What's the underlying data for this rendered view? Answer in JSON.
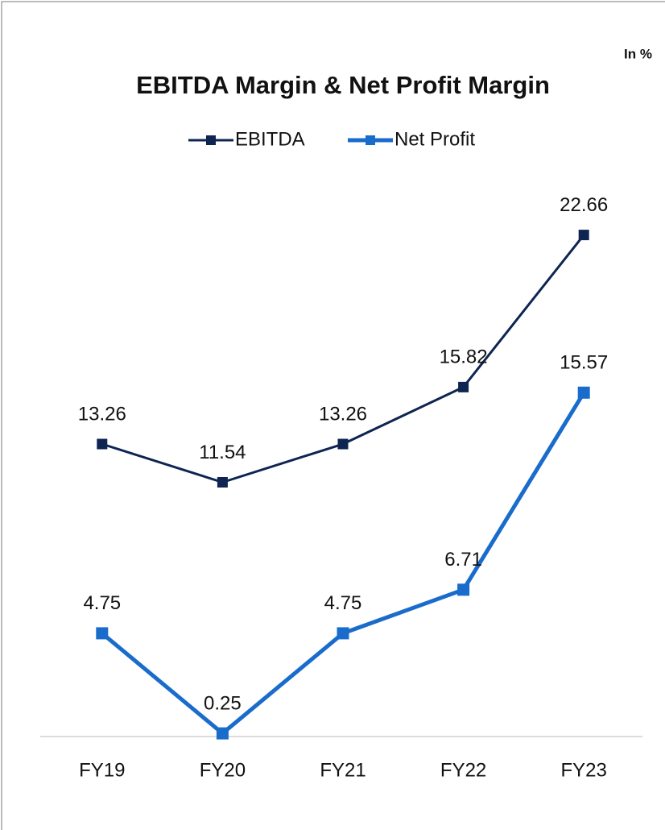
{
  "chart_data": {
    "type": "line",
    "title": "EBITDA Margin & Net Profit Margin",
    "annotation": "In %",
    "categories": [
      "FY19",
      "FY20",
      "FY21",
      "FY22",
      "FY23"
    ],
    "series": [
      {
        "name": "EBITDA",
        "color": "#0e2552",
        "values": [
          13.26,
          11.54,
          13.26,
          15.82,
          22.66
        ]
      },
      {
        "name": "Net Profit",
        "color": "#1a6ccc",
        "values": [
          4.75,
          0.25,
          4.75,
          6.71,
          15.57
        ]
      }
    ],
    "ylim": [
      0,
      25
    ],
    "legend": "top"
  }
}
